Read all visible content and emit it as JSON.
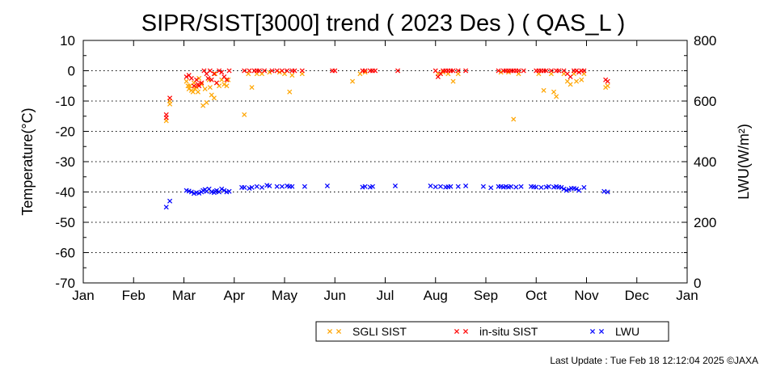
{
  "chart_data": {
    "type": "scatter",
    "title": "SIPR/SIST[3000] trend ( 2023 Des ) ( QAS_L )",
    "xlabel": "",
    "ylabel": "Temperature(°C)",
    "y2label": "LWU(W/m²)",
    "ylim": [
      -70,
      10
    ],
    "y2lim": [
      0,
      800
    ],
    "yticks": [
      "10",
      "0",
      "-10",
      "-20",
      "-30",
      "-40",
      "-50",
      "-60",
      "-70"
    ],
    "y2ticks": [
      "800",
      "600",
      "400",
      "200",
      "0"
    ],
    "xticks": [
      "Jan",
      "Feb",
      "Mar",
      "Apr",
      "May",
      "Jun",
      "Jul",
      "Aug",
      "Sep",
      "Oct",
      "Nov",
      "Dec",
      "Jan"
    ],
    "grid": "dotted horizontal at 0, -10, -20, -30, -40, -50, -60",
    "legend_position": "bottom-right",
    "series": [
      {
        "name": "SGLI SIST",
        "color": "#FFA500",
        "axis": "left",
        "points": [
          [
            1.65,
            -16.5
          ],
          [
            1.72,
            -11
          ],
          [
            1.72,
            -10
          ],
          [
            2.05,
            -3.5
          ],
          [
            2.08,
            -5
          ],
          [
            2.1,
            -6
          ],
          [
            2.12,
            -5
          ],
          [
            2.15,
            -6.5
          ],
          [
            2.18,
            -7
          ],
          [
            2.2,
            -4
          ],
          [
            2.22,
            -6
          ],
          [
            2.25,
            -5.5
          ],
          [
            2.28,
            -7
          ],
          [
            2.3,
            -2.5
          ],
          [
            2.35,
            -4.5
          ],
          [
            2.38,
            -11.5
          ],
          [
            2.42,
            -6
          ],
          [
            2.45,
            -10.5
          ],
          [
            2.5,
            -3
          ],
          [
            2.52,
            -5.5
          ],
          [
            2.55,
            -8
          ],
          [
            2.6,
            -9
          ],
          [
            2.62,
            -1
          ],
          [
            2.65,
            -4
          ],
          [
            2.7,
            -5
          ],
          [
            2.75,
            -3
          ],
          [
            2.8,
            -4.5
          ],
          [
            2.85,
            -5
          ],
          [
            2.88,
            -3
          ],
          [
            3.2,
            -14.5
          ],
          [
            3.28,
            -1
          ],
          [
            3.35,
            -5.5
          ],
          [
            3.45,
            -1
          ],
          [
            3.55,
            -1
          ],
          [
            3.7,
            -0.5
          ],
          [
            3.9,
            -0.5
          ],
          [
            4.0,
            -1
          ],
          [
            4.1,
            -7
          ],
          [
            4.15,
            -1.5
          ],
          [
            4.35,
            -1
          ],
          [
            5.35,
            -3.5
          ],
          [
            5.5,
            -1
          ],
          [
            5.6,
            -0.5
          ],
          [
            7.05,
            -1
          ],
          [
            7.15,
            -0.5
          ],
          [
            7.25,
            -1
          ],
          [
            7.35,
            -3.5
          ],
          [
            7.45,
            -1
          ],
          [
            8.3,
            -0.5
          ],
          [
            8.45,
            -0.5
          ],
          [
            8.55,
            -16
          ],
          [
            8.65,
            -1
          ],
          [
            9.05,
            -1
          ],
          [
            9.15,
            -6.5
          ],
          [
            9.3,
            -1
          ],
          [
            9.35,
            -7
          ],
          [
            9.4,
            -8.5
          ],
          [
            9.55,
            -1
          ],
          [
            9.62,
            -3.5
          ],
          [
            9.68,
            -4.5
          ],
          [
            9.75,
            -1
          ],
          [
            9.8,
            -3.5
          ],
          [
            9.9,
            -3
          ],
          [
            9.95,
            -1
          ],
          [
            10.38,
            -5.5
          ],
          [
            10.42,
            -5
          ]
        ]
      },
      {
        "name": "in-situ SIST",
        "color": "#FF0000",
        "axis": "left",
        "points": [
          [
            1.65,
            -14.5
          ],
          [
            1.65,
            -15.5
          ],
          [
            1.72,
            -9
          ],
          [
            2.05,
            -2
          ],
          [
            2.1,
            -1.5
          ],
          [
            2.15,
            -2.5
          ],
          [
            2.2,
            -5
          ],
          [
            2.25,
            -3
          ],
          [
            2.28,
            -4.5
          ],
          [
            2.3,
            -5
          ],
          [
            2.35,
            -4
          ],
          [
            2.4,
            0
          ],
          [
            2.45,
            -1
          ],
          [
            2.48,
            -2.5
          ],
          [
            2.52,
            0
          ],
          [
            2.55,
            -3
          ],
          [
            2.6,
            -1
          ],
          [
            2.65,
            -4
          ],
          [
            2.7,
            0
          ],
          [
            2.75,
            -0.5
          ],
          [
            2.8,
            -2
          ],
          [
            2.85,
            -3
          ],
          [
            2.9,
            0
          ],
          [
            3.2,
            0
          ],
          [
            3.3,
            0
          ],
          [
            3.4,
            0
          ],
          [
            3.45,
            0
          ],
          [
            3.5,
            0
          ],
          [
            3.6,
            0
          ],
          [
            3.75,
            0
          ],
          [
            3.85,
            0
          ],
          [
            3.95,
            0
          ],
          [
            4.05,
            0
          ],
          [
            4.15,
            0
          ],
          [
            4.2,
            0
          ],
          [
            4.35,
            0
          ],
          [
            4.95,
            0
          ],
          [
            5.0,
            0
          ],
          [
            5.55,
            0
          ],
          [
            5.6,
            0
          ],
          [
            5.7,
            0
          ],
          [
            5.75,
            0
          ],
          [
            5.8,
            0
          ],
          [
            6.25,
            0
          ],
          [
            7.0,
            0
          ],
          [
            7.05,
            -2
          ],
          [
            7.1,
            -1
          ],
          [
            7.15,
            0
          ],
          [
            7.2,
            0
          ],
          [
            7.25,
            0
          ],
          [
            7.3,
            0
          ],
          [
            7.35,
            0
          ],
          [
            7.45,
            0
          ],
          [
            7.6,
            0
          ],
          [
            8.25,
            0
          ],
          [
            8.35,
            0
          ],
          [
            8.4,
            0
          ],
          [
            8.45,
            0
          ],
          [
            8.5,
            0
          ],
          [
            8.55,
            0
          ],
          [
            8.6,
            0
          ],
          [
            8.65,
            0
          ],
          [
            8.75,
            0
          ],
          [
            9.0,
            0
          ],
          [
            9.05,
            0
          ],
          [
            9.1,
            0
          ],
          [
            9.15,
            0
          ],
          [
            9.2,
            0
          ],
          [
            9.3,
            0
          ],
          [
            9.4,
            0
          ],
          [
            9.45,
            0
          ],
          [
            9.55,
            0
          ],
          [
            9.62,
            -1
          ],
          [
            9.68,
            -2
          ],
          [
            9.75,
            0
          ],
          [
            9.8,
            0
          ],
          [
            9.85,
            -0.5
          ],
          [
            9.9,
            0
          ],
          [
            9.95,
            0
          ],
          [
            10.38,
            -3
          ],
          [
            10.42,
            -3.5
          ]
        ]
      },
      {
        "name": "LWU",
        "color": "#0000FF",
        "axis": "right",
        "points": [
          [
            1.65,
            250
          ],
          [
            1.72,
            270
          ],
          [
            2.05,
            305
          ],
          [
            2.1,
            303
          ],
          [
            2.15,
            300
          ],
          [
            2.2,
            295
          ],
          [
            2.25,
            298
          ],
          [
            2.3,
            296
          ],
          [
            2.35,
            300
          ],
          [
            2.38,
            305
          ],
          [
            2.42,
            308
          ],
          [
            2.45,
            302
          ],
          [
            2.5,
            310
          ],
          [
            2.55,
            300
          ],
          [
            2.6,
            298
          ],
          [
            2.62,
            302
          ],
          [
            2.65,
            305
          ],
          [
            2.7,
            300
          ],
          [
            2.75,
            310
          ],
          [
            2.8,
            305
          ],
          [
            2.85,
            300
          ],
          [
            2.9,
            302
          ],
          [
            3.15,
            315
          ],
          [
            3.2,
            315
          ],
          [
            3.3,
            312
          ],
          [
            3.35,
            315
          ],
          [
            3.45,
            318
          ],
          [
            3.55,
            315
          ],
          [
            3.65,
            322
          ],
          [
            3.7,
            320
          ],
          [
            3.85,
            318
          ],
          [
            3.95,
            318
          ],
          [
            4.05,
            320
          ],
          [
            4.1,
            318
          ],
          [
            4.15,
            318
          ],
          [
            4.4,
            318
          ],
          [
            4.85,
            320
          ],
          [
            5.55,
            316
          ],
          [
            5.6,
            318
          ],
          [
            5.7,
            316
          ],
          [
            5.75,
            318
          ],
          [
            6.2,
            320
          ],
          [
            6.9,
            320
          ],
          [
            7.0,
            317
          ],
          [
            7.1,
            318
          ],
          [
            7.2,
            316
          ],
          [
            7.25,
            317
          ],
          [
            7.3,
            318
          ],
          [
            7.45,
            318
          ],
          [
            7.6,
            320
          ],
          [
            7.95,
            318
          ],
          [
            8.1,
            314
          ],
          [
            8.25,
            318
          ],
          [
            8.3,
            318
          ],
          [
            8.35,
            316
          ],
          [
            8.4,
            318
          ],
          [
            8.45,
            316
          ],
          [
            8.5,
            318
          ],
          [
            8.6,
            316
          ],
          [
            8.7,
            318
          ],
          [
            8.9,
            318
          ],
          [
            8.95,
            317
          ],
          [
            9.0,
            316
          ],
          [
            9.1,
            315
          ],
          [
            9.2,
            316
          ],
          [
            9.25,
            318
          ],
          [
            9.35,
            316
          ],
          [
            9.4,
            318
          ],
          [
            9.45,
            316
          ],
          [
            9.5,
            315
          ],
          [
            9.55,
            310
          ],
          [
            9.6,
            305
          ],
          [
            9.65,
            308
          ],
          [
            9.7,
            312
          ],
          [
            9.75,
            312
          ],
          [
            9.8,
            310
          ],
          [
            9.85,
            305
          ],
          [
            9.95,
            315
          ],
          [
            10.35,
            302
          ],
          [
            10.42,
            300
          ]
        ]
      }
    ]
  },
  "footer": {
    "last_update": "Last Update : Tue Feb 18 12:12:04 2025  ©JAXA"
  }
}
